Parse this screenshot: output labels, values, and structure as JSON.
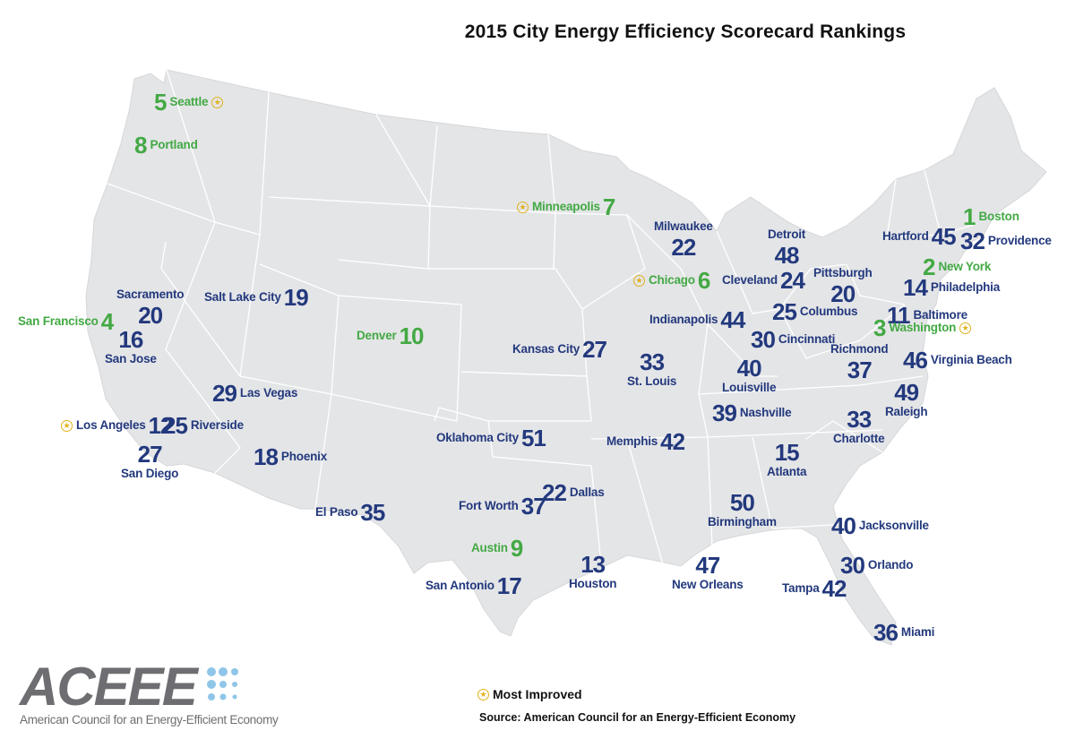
{
  "title": "2015 City Energy Efficiency Scorecard Rankings",
  "colors": {
    "land": "#e4e5e7",
    "border": "#ffffff",
    "rank_default": "#23397d",
    "rank_top10": "#43a944",
    "most_improved": "#e0b21c",
    "logo_gray": "#6e6e72",
    "logo_blue": "#8fc5e8"
  },
  "cities": [
    {
      "name": "Seattle",
      "rank": "5",
      "top10": true,
      "most_improved": true
    },
    {
      "name": "Portland",
      "rank": "8",
      "top10": true,
      "most_improved": false
    },
    {
      "name": "Minneapolis",
      "rank": "7",
      "top10": true,
      "most_improved": true
    },
    {
      "name": "Boston",
      "rank": "1",
      "top10": true,
      "most_improved": false
    },
    {
      "name": "Hartford",
      "rank": "45",
      "top10": false,
      "most_improved": false
    },
    {
      "name": "Providence",
      "rank": "32",
      "top10": false,
      "most_improved": false
    },
    {
      "name": "Milwaukee",
      "rank": "22",
      "top10": false,
      "most_improved": false
    },
    {
      "name": "Detroit",
      "rank": "48",
      "top10": false,
      "most_improved": false
    },
    {
      "name": "New York",
      "rank": "2",
      "top10": true,
      "most_improved": false
    },
    {
      "name": "Chicago",
      "rank": "6",
      "top10": true,
      "most_improved": true
    },
    {
      "name": "Cleveland",
      "rank": "24",
      "top10": false,
      "most_improved": false
    },
    {
      "name": "Pittsburgh",
      "rank": "20",
      "top10": false,
      "most_improved": false
    },
    {
      "name": "Philadelphia",
      "rank": "14",
      "top10": false,
      "most_improved": false
    },
    {
      "name": "Sacramento",
      "rank": "20",
      "top10": false,
      "most_improved": false
    },
    {
      "name": "Salt Lake City",
      "rank": "19",
      "top10": false,
      "most_improved": false
    },
    {
      "name": "San Francisco",
      "rank": "4",
      "top10": true,
      "most_improved": false
    },
    {
      "name": "San Jose",
      "rank": "16",
      "top10": false,
      "most_improved": false
    },
    {
      "name": "Denver",
      "rank": "10",
      "top10": true,
      "most_improved": false
    },
    {
      "name": "Indianapolis",
      "rank": "44",
      "top10": false,
      "most_improved": false
    },
    {
      "name": "Columbus",
      "rank": "25",
      "top10": false,
      "most_improved": false
    },
    {
      "name": "Baltimore",
      "rank": "11",
      "top10": false,
      "most_improved": false
    },
    {
      "name": "Washington",
      "rank": "3",
      "top10": true,
      "most_improved": true
    },
    {
      "name": "Kansas City",
      "rank": "27",
      "top10": false,
      "most_improved": false
    },
    {
      "name": "Cincinnati",
      "rank": "30",
      "top10": false,
      "most_improved": false
    },
    {
      "name": "St. Louis",
      "rank": "33",
      "top10": false,
      "most_improved": false
    },
    {
      "name": "Louisville",
      "rank": "40",
      "top10": false,
      "most_improved": false
    },
    {
      "name": "Richmond",
      "rank": "37",
      "top10": false,
      "most_improved": false
    },
    {
      "name": "Virginia Beach",
      "rank": "46",
      "top10": false,
      "most_improved": false
    },
    {
      "name": "Las Vegas",
      "rank": "29",
      "top10": false,
      "most_improved": false
    },
    {
      "name": "Raleigh",
      "rank": "49",
      "top10": false,
      "most_improved": false
    },
    {
      "name": "Nashville",
      "rank": "39",
      "top10": false,
      "most_improved": false
    },
    {
      "name": "Charlotte",
      "rank": "33",
      "top10": false,
      "most_improved": false
    },
    {
      "name": "Los Angeles",
      "rank": "12",
      "top10": false,
      "most_improved": true
    },
    {
      "name": "Riverside",
      "rank": "25",
      "top10": false,
      "most_improved": false
    },
    {
      "name": "Oklahoma City",
      "rank": "51",
      "top10": false,
      "most_improved": false
    },
    {
      "name": "Memphis",
      "rank": "42",
      "top10": false,
      "most_improved": false
    },
    {
      "name": "San Diego",
      "rank": "27",
      "top10": false,
      "most_improved": false
    },
    {
      "name": "Phoenix",
      "rank": "18",
      "top10": false,
      "most_improved": false
    },
    {
      "name": "Atlanta",
      "rank": "15",
      "top10": false,
      "most_improved": false
    },
    {
      "name": "Dallas",
      "rank": "22",
      "top10": false,
      "most_improved": false
    },
    {
      "name": "Fort Worth",
      "rank": "37",
      "top10": false,
      "most_improved": false
    },
    {
      "name": "El Paso",
      "rank": "35",
      "top10": false,
      "most_improved": false
    },
    {
      "name": "Birmingham",
      "rank": "50",
      "top10": false,
      "most_improved": false
    },
    {
      "name": "Jacksonville",
      "rank": "40",
      "top10": false,
      "most_improved": false
    },
    {
      "name": "Austin",
      "rank": "9",
      "top10": true,
      "most_improved": false
    },
    {
      "name": "Houston",
      "rank": "13",
      "top10": false,
      "most_improved": false
    },
    {
      "name": "New Orleans",
      "rank": "47",
      "top10": false,
      "most_improved": false
    },
    {
      "name": "Orlando",
      "rank": "30",
      "top10": false,
      "most_improved": false
    },
    {
      "name": "San Antonio",
      "rank": "17",
      "top10": false,
      "most_improved": false
    },
    {
      "name": "Tampa",
      "rank": "42",
      "top10": false,
      "most_improved": false
    },
    {
      "name": "Miami",
      "rank": "36",
      "top10": false,
      "most_improved": false
    }
  ],
  "legend": {
    "label": "Most Improved",
    "icon": "star-icon"
  },
  "source": "Source: American Council for an Energy-Efficient Economy",
  "logo": {
    "wordmark": "ACEEE",
    "tagline": "American Council for an Energy-Efficient Economy"
  }
}
